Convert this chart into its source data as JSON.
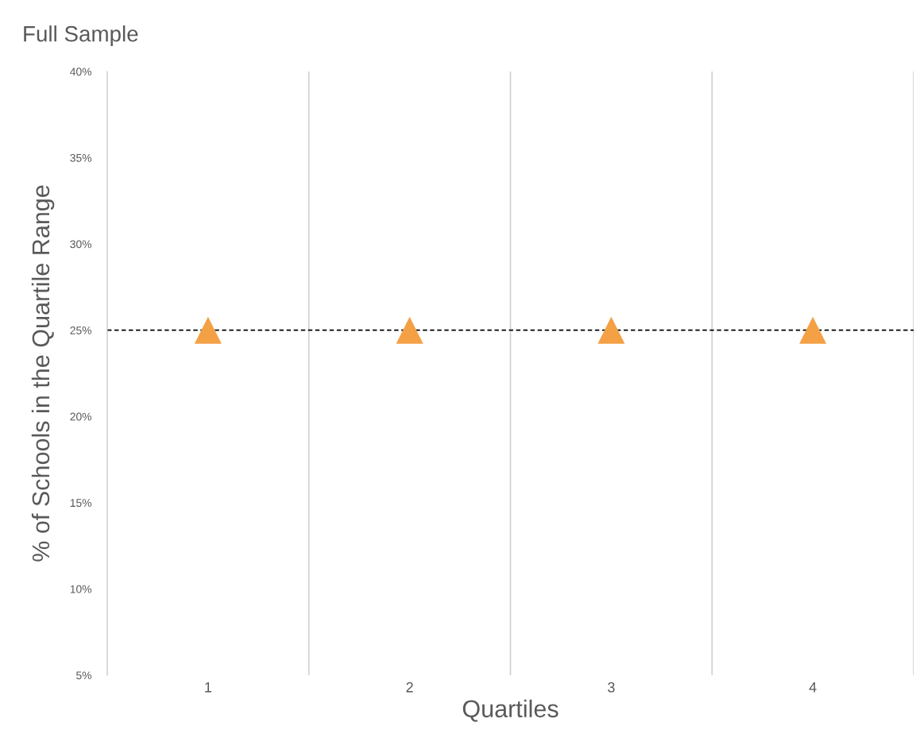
{
  "chart_data": {
    "type": "scatter",
    "title": "Full Sample",
    "xlabel": "Quartiles",
    "ylabel": "% of Schools in the Quartile Range",
    "categories": [
      "1",
      "2",
      "3",
      "4"
    ],
    "series": [
      {
        "color": "#f4a044",
        "values": [
          25,
          25,
          25,
          25
        ]
      }
    ],
    "marker": "triangle",
    "ylim": [
      5,
      40
    ],
    "yticks": [
      {
        "value": 5,
        "label": "5%"
      },
      {
        "value": 10,
        "label": "10%"
      },
      {
        "value": 15,
        "label": "15%"
      },
      {
        "value": 20,
        "label": "20%"
      },
      {
        "value": 25,
        "label": "25%"
      },
      {
        "value": 30,
        "label": "30%"
      },
      {
        "value": 35,
        "label": "35%"
      },
      {
        "value": 40,
        "label": "40%"
      }
    ],
    "ref_lines": [
      {
        "axis": "y",
        "value": 25,
        "color": "#000000",
        "line_style": "dashed"
      }
    ],
    "grid": "x"
  }
}
